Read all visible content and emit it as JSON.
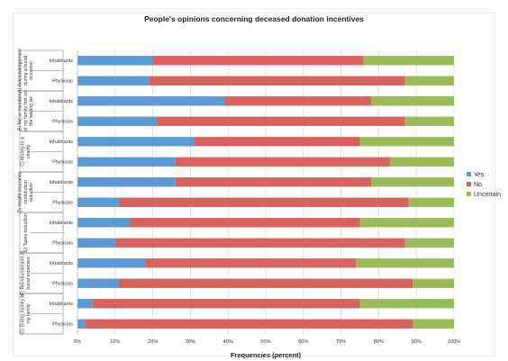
{
  "chart_data": {
    "type": "bar",
    "orientation": "horizontal",
    "stacked": true,
    "title": "People's opinions concerning deceased donation incentives",
    "xlabel": "Frequencies (percent)",
    "ylabel": "",
    "xlim": [
      0,
      100
    ],
    "xticks": [
      "0%",
      "10%",
      "20%",
      "30%",
      "40%",
      "50%",
      "60%",
      "70%",
      "80%",
      "90%",
      "100%"
    ],
    "grid": true,
    "legend_position": "right",
    "groups": [
      {
        "label": "A) Acknowledgement during a burial occasion",
        "label_lines": [
          "A) Acknowledgement",
          "during a burial",
          "occasion"
        ],
        "rows": [
          "Inhabitants",
          "Physicias"
        ]
      },
      {
        "label": "B) Me or members of my family first on the waiting list",
        "label_lines": [
          "B) Me or members",
          "of my family first on",
          "the waiting list"
        ],
        "rows": [
          "Inhabitants",
          "Physicias"
        ]
      },
      {
        "label": "C) Money to a charity",
        "label_lines": [
          "C) Money to a",
          "charity"
        ],
        "rows": [
          "Inhabitants",
          "Physicias"
        ]
      },
      {
        "label": "D) Health insurance contribution reduction",
        "label_lines": [
          "D) Health insurance",
          "contribution",
          "reduction"
        ],
        "rows": [
          "Inhabitants",
          "Physicias"
        ]
      },
      {
        "label": "E) Taxes reduction",
        "label_lines": [
          "E) Taxes reduction"
        ],
        "rows": [
          "Inhabitants",
          "Physicias"
        ]
      },
      {
        "label": "F) Reimbursement of burial expenses",
        "label_lines": [
          "F) Reimbursement of",
          "burial expenses"
        ],
        "rows": [
          "Inhabitants",
          "Physicias"
        ]
      },
      {
        "label": "G) Giving money to my family",
        "label_lines": [
          "G) Giving money to",
          "my family"
        ],
        "rows": [
          "Inhabitants",
          "Physicias"
        ]
      }
    ],
    "series": [
      {
        "name": "Yes",
        "color": "#5b9bd5",
        "values": [
          20,
          19,
          39,
          21,
          31,
          26,
          26,
          11,
          14,
          10,
          18,
          11,
          4,
          2
        ]
      },
      {
        "name": "No",
        "color": "#d9625f",
        "values": [
          56,
          68,
          39,
          66,
          44,
          57,
          52,
          77,
          61,
          77,
          56,
          78,
          71,
          87
        ]
      },
      {
        "name": "Uncertain",
        "color": "#9bbb59",
        "values": [
          24,
          13,
          22,
          13,
          25,
          17,
          22,
          12,
          25,
          13,
          26,
          11,
          25,
          11
        ]
      }
    ]
  }
}
